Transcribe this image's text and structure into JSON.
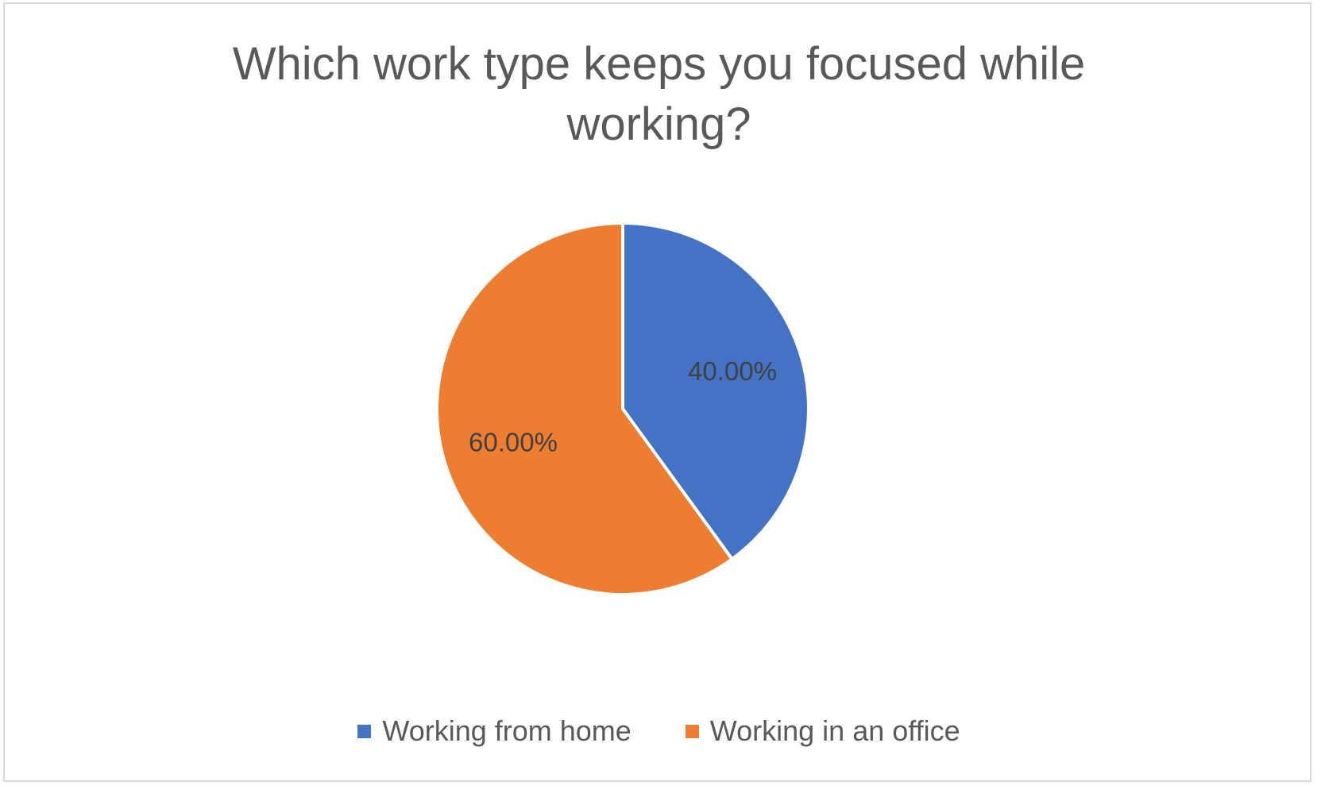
{
  "chart_data": {
    "type": "pie",
    "title": "Which work type keeps you focused while working?",
    "categories": [
      "Working from home",
      "Working in an office"
    ],
    "values": [
      40.0,
      60.0
    ],
    "data_labels": [
      "40.00%",
      "60.00%"
    ],
    "colors": [
      "#4472C4",
      "#ED7D31"
    ],
    "legend_position": "bottom",
    "start_angle": "12 o'clock",
    "direction": "clockwise"
  }
}
